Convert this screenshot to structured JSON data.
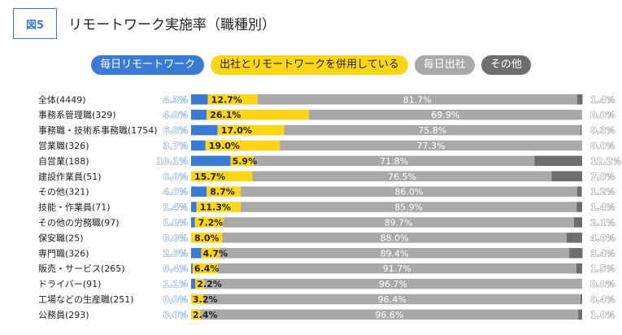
{
  "figure": {
    "badge": "図5",
    "title": "リモートワーク実施率（職種別）"
  },
  "colors": {
    "remote": "#3a7bd5",
    "mixed": "#ffd617",
    "office": "#a9a9a9",
    "other": "#6e6e6e"
  },
  "chart_data": {
    "type": "bar",
    "orientation": "horizontal",
    "stacked": true,
    "unit": "%",
    "categories": [
      "全体(4449)",
      "事務系管理職(329)",
      "事務職・技術系事務職(1754)",
      "営業職(326)",
      "自営業(188)",
      "建設作業員(51)",
      "その他(321)",
      "技能・作業員(71)",
      "その他の労務職(97)",
      "保安職(25)",
      "専門職(326)",
      "販売・サービス(265)",
      "ドライバー(91)",
      "工場などの生産職(251)",
      "公務員(293)"
    ],
    "series": [
      {
        "name": "毎日リモートワーク",
        "values": [
          4.3,
          4.0,
          6.8,
          3.7,
          10.1,
          0.0,
          4.0,
          1.4,
          1.0,
          0.0,
          2.6,
          0.4,
          1.1,
          0.0,
          0.0
        ]
      },
      {
        "name": "出社とリモートワークを併用している",
        "values": [
          12.7,
          26.1,
          17.0,
          19.0,
          5.9,
          15.7,
          8.7,
          11.3,
          7.2,
          8.0,
          4.7,
          6.4,
          2.2,
          3.2,
          2.4
        ]
      },
      {
        "name": "毎日出社",
        "values": [
          81.7,
          69.9,
          75.8,
          77.3,
          71.8,
          76.5,
          86.0,
          85.9,
          89.7,
          88.0,
          89.4,
          91.7,
          96.7,
          96.4,
          96.6
        ]
      },
      {
        "name": "その他",
        "values": [
          1.4,
          0.0,
          0.3,
          0.0,
          12.2,
          7.8,
          1.2,
          1.4,
          2.1,
          4.0,
          3.4,
          1.5,
          0.0,
          0.4,
          1.0
        ]
      }
    ],
    "xlim": [
      0,
      100
    ],
    "legend": "top-center"
  }
}
